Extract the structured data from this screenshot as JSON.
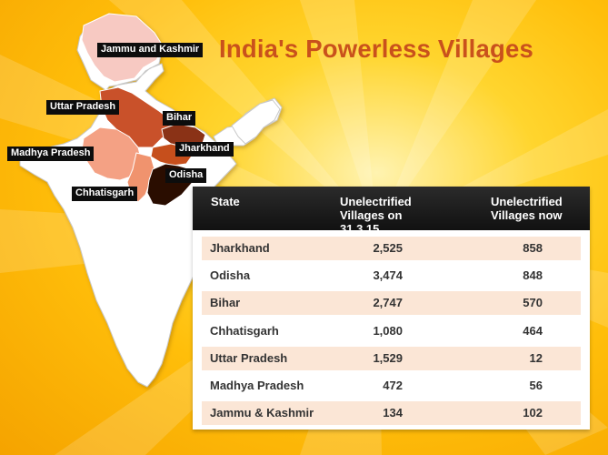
{
  "title": "India's Powerless Villages",
  "map": {
    "labels": [
      "Jammu and Kashmir",
      "Uttar Pradesh",
      "Bihar",
      "Madhya Pradesh",
      "Jharkhand",
      "Odisha",
      "Chhatisgarh"
    ],
    "colors": {
      "base": "#ffffff",
      "border": "#c8c8c8",
      "jammu_kashmir": "#f7c9c2",
      "uttar_pradesh": "#c9512b",
      "madhya_pradesh": "#f4a184",
      "chhatisgarh": "#f0936e",
      "bihar": "#8a3112",
      "jharkhand": "#c6501e",
      "odisha": "#2b0d05"
    }
  },
  "chart_data": {
    "type": "table",
    "title": "India's Powerless Villages",
    "columns": [
      "State",
      "Unelectrified Villages on 31.3.15",
      "Unelectrified Villages now"
    ],
    "rows": [
      {
        "state": "Jharkhand",
        "on_31_3_15": "2,525",
        "now": "858"
      },
      {
        "state": "Odisha",
        "on_31_3_15": "3,474",
        "now": "848"
      },
      {
        "state": "Bihar",
        "on_31_3_15": "2,747",
        "now": "570"
      },
      {
        "state": "Chhatisgarh",
        "on_31_3_15": "1,080",
        "now": "464"
      },
      {
        "state": "Uttar Pradesh",
        "on_31_3_15": "1,529",
        "now": "12"
      },
      {
        "state": "Madhya Pradesh",
        "on_31_3_15": "472",
        "now": "56"
      },
      {
        "state": "Jammu & Kashmir",
        "on_31_3_15": "134",
        "now": "102"
      }
    ],
    "header_colors": {
      "background": "#1a1a1a",
      "text": "#ffffff"
    },
    "row_shade_color": "#fbe6d6"
  }
}
